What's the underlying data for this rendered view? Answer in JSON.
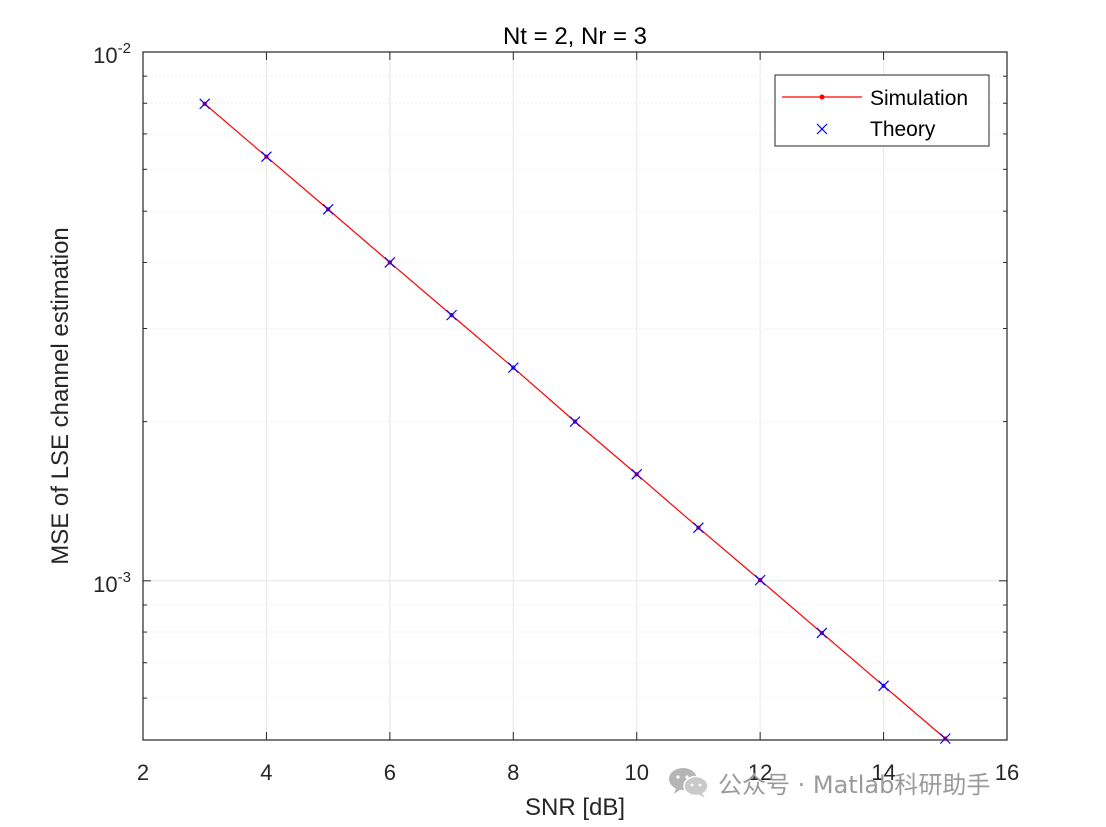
{
  "chart_data": {
    "type": "line",
    "title": "Nt = 2, Nr = 3",
    "xlabel": "SNR [dB]",
    "ylabel": "MSE of LSE channel estimation",
    "xlim": [
      2,
      16
    ],
    "ylim": [
      0.0005,
      0.01
    ],
    "yscale": "log",
    "grid": true,
    "legend_position": "top-right",
    "x_ticks": [
      "2",
      "4",
      "6",
      "8",
      "10",
      "12",
      "14",
      "16"
    ],
    "y_ticks": [
      {
        "base": "10",
        "exp": "-2",
        "value": 0.01
      },
      {
        "base": "10",
        "exp": "-3",
        "value": 0.001
      }
    ],
    "x": [
      3,
      4,
      5,
      6,
      7,
      8,
      9,
      10,
      11,
      12,
      13,
      14,
      15
    ],
    "series": [
      {
        "name": "Simulation",
        "style": "line-point",
        "color": "#ff0000",
        "values": [
          0.00798,
          0.00634,
          0.00504,
          0.004,
          0.00318,
          0.00253,
          0.002,
          0.00159,
          0.00126,
          0.001003,
          0.000797,
          0.000633,
          0.000503
        ]
      },
      {
        "name": "Theory",
        "style": "x-marker",
        "color": "#0000ff",
        "values": [
          0.00798,
          0.00634,
          0.00504,
          0.004,
          0.00318,
          0.00253,
          0.002,
          0.00159,
          0.00126,
          0.001003,
          0.000797,
          0.000633,
          0.000503
        ]
      }
    ]
  },
  "watermark": {
    "text": "公众号 · Matlab科研助手",
    "icon": "wechat-icon"
  }
}
